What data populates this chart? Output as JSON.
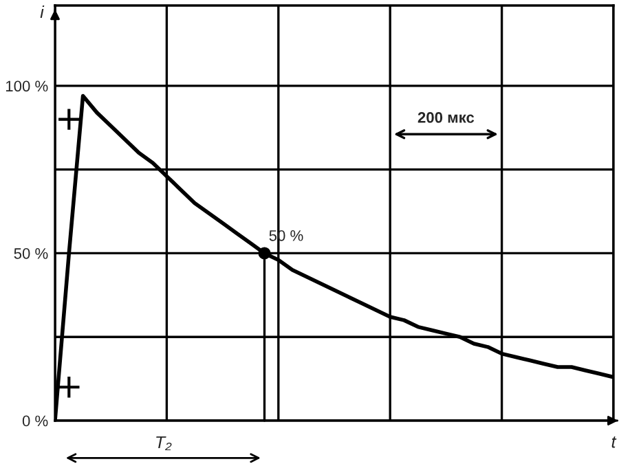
{
  "chart_data": {
    "type": "line",
    "xlabel": "t",
    "ylabel": "i",
    "categories": [
      null,
      null,
      null,
      null,
      null,
      null,
      null,
      null,
      null,
      null,
      null,
      null,
      null,
      null,
      null,
      null,
      null,
      null,
      null,
      null,
      null,
      null,
      null,
      null,
      null,
      null,
      null,
      null,
      null,
      null,
      null,
      null,
      null,
      null,
      null,
      null,
      null,
      null,
      null,
      null,
      null
    ],
    "ylim": [
      0,
      124
    ],
    "yticks": [
      {
        "value": 0,
        "label": "0 %"
      },
      {
        "value": 25,
        "label": null
      },
      {
        "value": 50,
        "label": "50 %"
      },
      {
        "value": 75,
        "label": null
      },
      {
        "value": 100,
        "label": "100 %"
      }
    ],
    "grid": true,
    "series": [
      {
        "color": "#000000",
        "values": [
          0,
          50,
          97,
          92,
          88,
          84,
          80,
          77,
          73,
          69,
          65,
          62,
          59,
          56,
          53,
          50,
          48,
          45,
          43,
          41,
          39,
          37,
          35,
          33,
          31,
          30,
          28,
          27,
          26,
          25,
          23,
          22,
          20,
          19,
          18,
          17,
          16,
          16,
          15,
          14,
          13
        ]
      },
      {
        "type": "scatter",
        "color": "#000000",
        "marker": "cross",
        "values": [
          null,
          10,
          null,
          null,
          null,
          null,
          null,
          null,
          null,
          null,
          null,
          null,
          null,
          null,
          null,
          null,
          null,
          null,
          null,
          null,
          null,
          null,
          null,
          null,
          null,
          null,
          null,
          null,
          null,
          null,
          null,
          null,
          null,
          null,
          null,
          null,
          null,
          null,
          null,
          null,
          null
        ]
      },
      {
        "type": "scatter",
        "color": "#000000",
        "marker": "cross",
        "values": [
          null,
          90,
          null,
          null,
          null,
          null,
          null,
          null,
          null,
          null,
          null,
          null,
          null,
          null,
          null,
          null,
          null,
          null,
          null,
          null,
          null,
          null,
          null,
          null,
          null,
          null,
          null,
          null,
          null,
          null,
          null,
          null,
          null,
          null,
          null,
          null,
          null,
          null,
          null,
          null,
          null
        ]
      },
      {
        "type": "scatter",
        "color": "#000000",
        "marker": "circle",
        "values": [
          null,
          null,
          null,
          null,
          null,
          null,
          null,
          null,
          null,
          null,
          null,
          null,
          null,
          null,
          null,
          50,
          null,
          null,
          null,
          null,
          null,
          null,
          null,
          null,
          null,
          null,
          null,
          null,
          null,
          null,
          null,
          null,
          null,
          null,
          null,
          null,
          null,
          null,
          null,
          null,
          null
        ]
      }
    ],
    "annotations": [
      "50 %",
      "T₂",
      "200 мкс"
    ]
  }
}
